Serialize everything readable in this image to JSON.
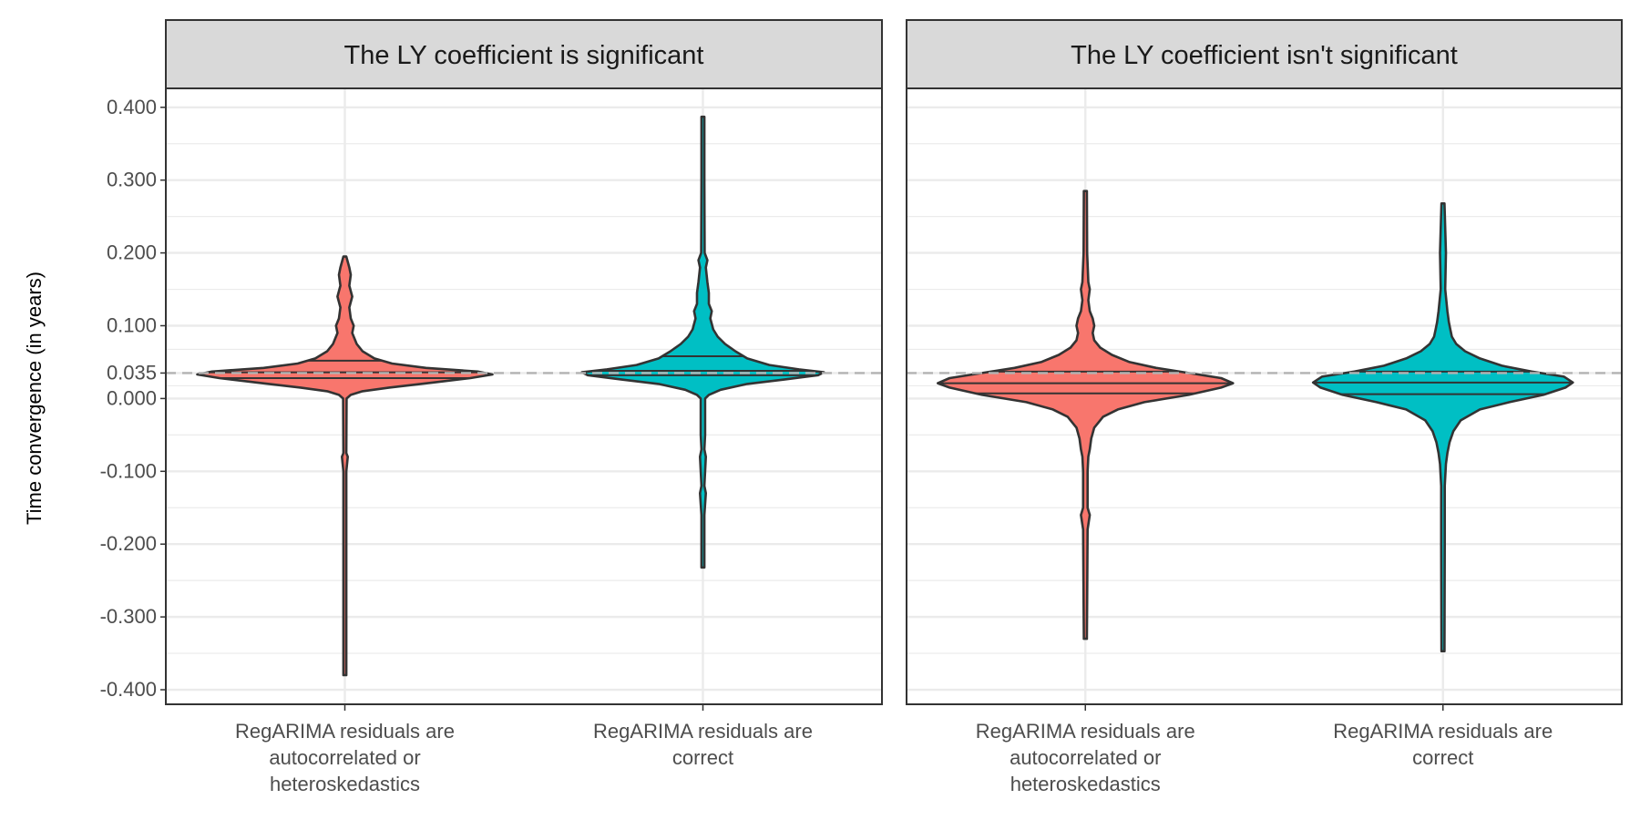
{
  "chart_data": {
    "type": "violin",
    "ylabel": "Time convergence (in years)",
    "ylim": [
      -0.42,
      0.426
    ],
    "y_ticks": [
      {
        "value": 0.4,
        "label": "0.400"
      },
      {
        "value": 0.3,
        "label": "0.300"
      },
      {
        "value": 0.2,
        "label": "0.200"
      },
      {
        "value": 0.1,
        "label": "0.100"
      },
      {
        "value": 0.035,
        "label": "0.035"
      },
      {
        "value": 0.0,
        "label": "0.000"
      },
      {
        "value": -0.1,
        "label": "-0.100"
      },
      {
        "value": -0.2,
        "label": "-0.200"
      },
      {
        "value": -0.3,
        "label": "-0.300"
      },
      {
        "value": -0.4,
        "label": "-0.400"
      }
    ],
    "reference_line": 0.035,
    "colors": {
      "autocorrelated": "#F8766D",
      "correct": "#00BFC4",
      "outline": "#333333",
      "reference": "#b3b3b3"
    },
    "categories": [
      [
        "RegARIMA residuals are",
        "autocorrelated or",
        "heteroskedastics"
      ],
      [
        "RegARIMA residuals are",
        "correct"
      ]
    ],
    "panels": [
      {
        "title": "The LY coefficient is significant",
        "violins": [
          {
            "category": 0,
            "color": "autocorrelated",
            "min": -0.38,
            "max": 0.195,
            "quantiles": [
              0.028,
              0.036,
              0.052
            ],
            "profile": [
              [
                -0.38,
                0.01
              ],
              [
                -0.1,
                0.01
              ],
              [
                -0.08,
                0.02
              ],
              [
                -0.075,
                0.01
              ],
              [
                0.0,
                0.012
              ],
              [
                0.005,
                0.04
              ],
              [
                0.01,
                0.12
              ],
              [
                0.015,
                0.3
              ],
              [
                0.022,
                0.6
              ],
              [
                0.028,
                0.85
              ],
              [
                0.033,
                1.0
              ],
              [
                0.037,
                0.9
              ],
              [
                0.042,
                0.55
              ],
              [
                0.048,
                0.32
              ],
              [
                0.055,
                0.2
              ],
              [
                0.065,
                0.12
              ],
              [
                0.075,
                0.08
              ],
              [
                0.09,
                0.05
              ],
              [
                0.1,
                0.06
              ],
              [
                0.11,
                0.04
              ],
              [
                0.125,
                0.03
              ],
              [
                0.14,
                0.05
              ],
              [
                0.155,
                0.03
              ],
              [
                0.17,
                0.04
              ],
              [
                0.18,
                0.03
              ],
              [
                0.195,
                0.01
              ]
            ]
          },
          {
            "category": 1,
            "color": "correct",
            "min": -0.232,
            "max": 0.387,
            "quantiles": [
              0.032,
              0.038,
              0.058
            ],
            "profile": [
              [
                -0.232,
                0.01
              ],
              [
                -0.16,
                0.01
              ],
              [
                -0.13,
                0.02
              ],
              [
                -0.12,
                0.01
              ],
              [
                -0.08,
                0.02
              ],
              [
                -0.07,
                0.01
              ],
              [
                -0.05,
                0.015
              ],
              [
                0.0,
                0.015
              ],
              [
                0.005,
                0.04
              ],
              [
                0.012,
                0.12
              ],
              [
                0.02,
                0.3
              ],
              [
                0.026,
                0.55
              ],
              [
                0.032,
                0.78
              ],
              [
                0.036,
                0.82
              ],
              [
                0.04,
                0.65
              ],
              [
                0.046,
                0.45
              ],
              [
                0.055,
                0.3
              ],
              [
                0.065,
                0.22
              ],
              [
                0.075,
                0.15
              ],
              [
                0.085,
                0.1
              ],
              [
                0.095,
                0.07
              ],
              [
                0.11,
                0.05
              ],
              [
                0.12,
                0.06
              ],
              [
                0.13,
                0.04
              ],
              [
                0.145,
                0.04
              ],
              [
                0.16,
                0.03
              ],
              [
                0.18,
                0.02
              ],
              [
                0.19,
                0.03
              ],
              [
                0.2,
                0.012
              ],
              [
                0.3,
                0.01
              ],
              [
                0.387,
                0.01
              ]
            ]
          }
        ]
      },
      {
        "title": "The LY coefficient isn't significant",
        "violins": [
          {
            "category": 0,
            "color": "autocorrelated",
            "min": -0.33,
            "max": 0.285,
            "quantiles": [
              0.007,
              0.021,
              0.037
            ],
            "profile": [
              [
                -0.33,
                0.01
              ],
              [
                -0.28,
                0.012
              ],
              [
                -0.18,
                0.015
              ],
              [
                -0.16,
                0.03
              ],
              [
                -0.15,
                0.015
              ],
              [
                -0.1,
                0.015
              ],
              [
                -0.08,
                0.02
              ],
              [
                -0.07,
                0.03
              ],
              [
                -0.055,
                0.04
              ],
              [
                -0.04,
                0.06
              ],
              [
                -0.025,
                0.12
              ],
              [
                -0.015,
                0.22
              ],
              [
                -0.005,
                0.4
              ],
              [
                0.005,
                0.7
              ],
              [
                0.015,
                0.92
              ],
              [
                0.021,
                1.0
              ],
              [
                0.028,
                0.92
              ],
              [
                0.035,
                0.7
              ],
              [
                0.042,
                0.48
              ],
              [
                0.05,
                0.3
              ],
              [
                0.06,
                0.18
              ],
              [
                0.07,
                0.1
              ],
              [
                0.08,
                0.06
              ],
              [
                0.09,
                0.05
              ],
              [
                0.1,
                0.06
              ],
              [
                0.11,
                0.05
              ],
              [
                0.12,
                0.03
              ],
              [
                0.135,
                0.02
              ],
              [
                0.15,
                0.03
              ],
              [
                0.16,
                0.02
              ],
              [
                0.2,
                0.012
              ],
              [
                0.285,
                0.01
              ]
            ]
          },
          {
            "category": 1,
            "color": "correct",
            "min": -0.347,
            "max": 0.268,
            "quantiles": [
              0.006,
              0.022,
              0.037
            ],
            "profile": [
              [
                -0.347,
                0.01
              ],
              [
                -0.2,
                0.012
              ],
              [
                -0.12,
                0.012
              ],
              [
                -0.09,
                0.02
              ],
              [
                -0.075,
                0.03
              ],
              [
                -0.06,
                0.045
              ],
              [
                -0.045,
                0.07
              ],
              [
                -0.03,
                0.12
              ],
              [
                -0.015,
                0.25
              ],
              [
                -0.005,
                0.45
              ],
              [
                0.005,
                0.68
              ],
              [
                0.015,
                0.83
              ],
              [
                0.022,
                0.88
              ],
              [
                0.03,
                0.82
              ],
              [
                0.037,
                0.6
              ],
              [
                0.045,
                0.4
              ],
              [
                0.055,
                0.25
              ],
              [
                0.065,
                0.15
              ],
              [
                0.075,
                0.09
              ],
              [
                0.085,
                0.06
              ],
              [
                0.095,
                0.05
              ],
              [
                0.105,
                0.04
              ],
              [
                0.12,
                0.03
              ],
              [
                0.15,
                0.015
              ],
              [
                0.2,
                0.02
              ],
              [
                0.268,
                0.01
              ]
            ]
          }
        ]
      }
    ]
  }
}
